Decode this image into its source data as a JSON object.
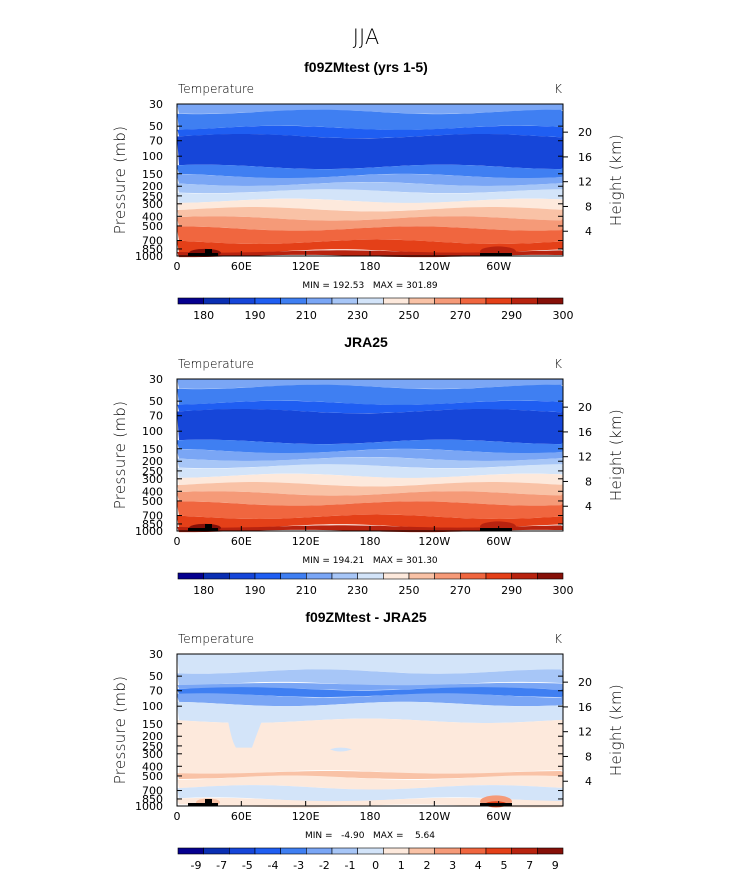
{
  "figure_title": "JJA",
  "chart_data": [
    {
      "type": "heatmap",
      "title": "f09ZMtest (yrs 1-5)",
      "left_label": "Temperature",
      "right_label": "K",
      "xlabel": "",
      "ylabel": "Pressure (mb)",
      "ylabel_right": "Height (km)",
      "x_ticks": [
        "0",
        "60E",
        "120E",
        "180",
        "120W",
        "60W"
      ],
      "y_ticks": [
        "30",
        "50",
        "70",
        "100",
        "150",
        "200",
        "250",
        "300",
        "400",
        "500",
        "700",
        "850",
        "1000"
      ],
      "y_ticks_right": [
        "20",
        "16",
        "12",
        "8",
        "4"
      ],
      "min_max": "MIN = 192.53   MAX = 301.89",
      "field": "absolute",
      "colorbar": {
        "colors": [
          "#05008f",
          "#0a2fb3",
          "#1646d9",
          "#1f5ef2",
          "#3f7ff2",
          "#7aa6f5",
          "#a7c6f7",
          "#d3e4f9",
          "#fde9dc",
          "#f9c2a6",
          "#f59a78",
          "#f0663f",
          "#e44018",
          "#b8230f",
          "#861008"
        ],
        "labels": [
          "180",
          "190",
          "210",
          "230",
          "250",
          "270",
          "290",
          "300"
        ]
      }
    },
    {
      "type": "heatmap",
      "title": "JRA25",
      "left_label": "Temperature",
      "right_label": "K",
      "xlabel": "",
      "ylabel": "Pressure (mb)",
      "ylabel_right": "Height (km)",
      "x_ticks": [
        "0",
        "60E",
        "120E",
        "180",
        "120W",
        "60W"
      ],
      "y_ticks": [
        "30",
        "50",
        "70",
        "100",
        "150",
        "200",
        "250",
        "300",
        "400",
        "500",
        "700",
        "850",
        "1000"
      ],
      "y_ticks_right": [
        "20",
        "16",
        "12",
        "8",
        "4"
      ],
      "min_max": "MIN = 194.21   MAX = 301.30",
      "field": "absolute",
      "colorbar": {
        "colors": [
          "#05008f",
          "#0a2fb3",
          "#1646d9",
          "#1f5ef2",
          "#3f7ff2",
          "#7aa6f5",
          "#a7c6f7",
          "#d3e4f9",
          "#fde9dc",
          "#f9c2a6",
          "#f59a78",
          "#f0663f",
          "#e44018",
          "#b8230f",
          "#861008"
        ],
        "labels": [
          "180",
          "190",
          "210",
          "230",
          "250",
          "270",
          "290",
          "300"
        ]
      }
    },
    {
      "type": "heatmap",
      "title": "f09ZMtest - JRA25",
      "left_label": "Temperature",
      "right_label": "K",
      "xlabel": "",
      "ylabel": "Pressure (mb)",
      "ylabel_right": "Height (km)",
      "x_ticks": [
        "0",
        "60E",
        "120E",
        "180",
        "120W",
        "60W"
      ],
      "y_ticks": [
        "30",
        "50",
        "70",
        "100",
        "150",
        "200",
        "250",
        "300",
        "400",
        "500",
        "700",
        "850",
        "1000"
      ],
      "y_ticks_right": [
        "20",
        "16",
        "12",
        "8",
        "4"
      ],
      "min_max": "MIN =   -4.90   MAX =    5.64",
      "field": "difference",
      "colorbar": {
        "colors": [
          "#05008f",
          "#0a2fb3",
          "#1646d9",
          "#1f5ef2",
          "#3f7ff2",
          "#7aa6f5",
          "#a7c6f7",
          "#d3e4f9",
          "#fde9dc",
          "#f9c2a6",
          "#f59a78",
          "#f0663f",
          "#e44018",
          "#b8230f",
          "#861008"
        ],
        "labels": [
          "-9",
          "-7",
          "-5",
          "-4",
          "-3",
          "-2",
          "-1",
          "0",
          "1",
          "2",
          "3",
          "4",
          "5",
          "7",
          "9"
        ]
      }
    }
  ]
}
